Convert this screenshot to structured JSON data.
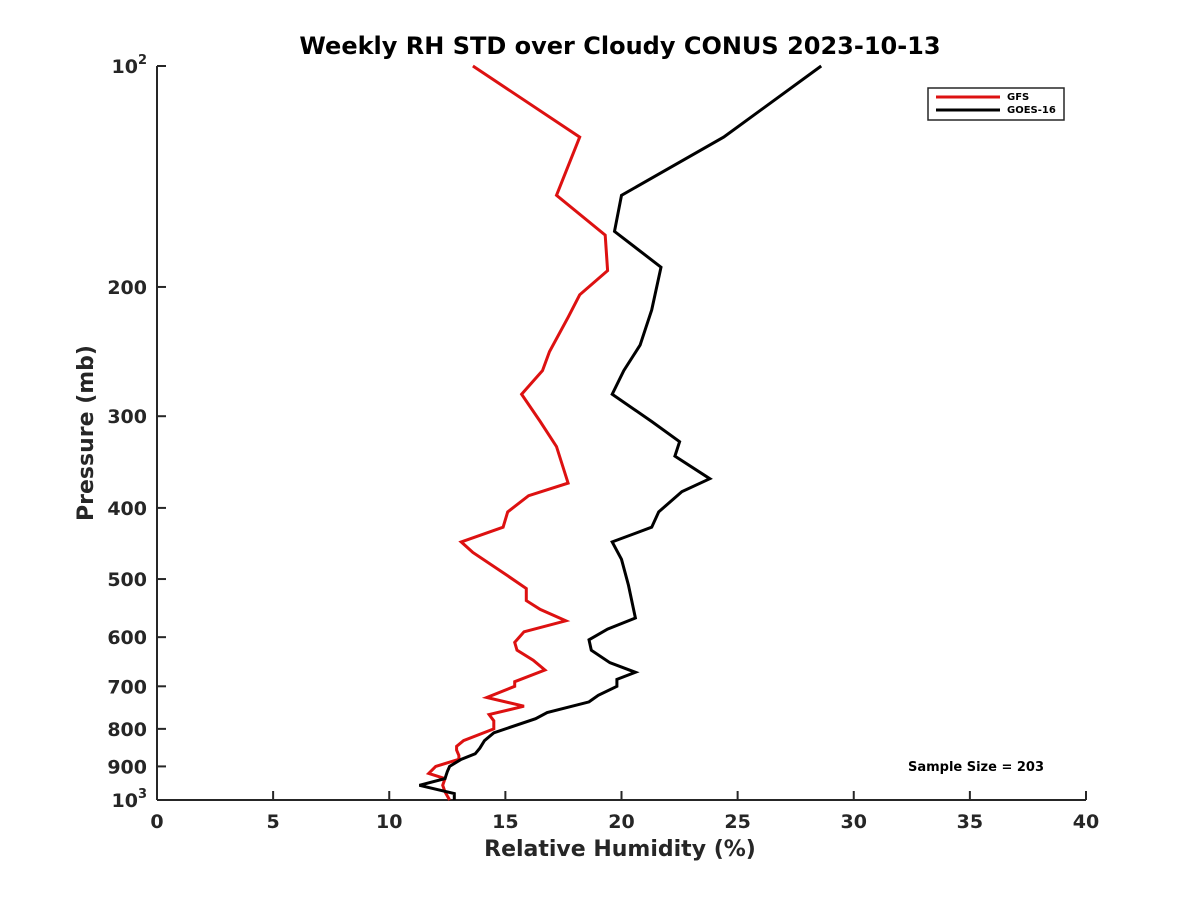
{
  "chart_data": {
    "type": "line",
    "title": "Weekly RH STD over Cloudy CONUS 2023-10-13",
    "xlabel": "Relative Humidity (%)",
    "ylabel": "Pressure (mb)",
    "xlim": [
      0,
      40
    ],
    "ylim": [
      100,
      1000
    ],
    "y_scale": "log",
    "y_reversed": true,
    "grid": false,
    "legend_position": "top-right",
    "x_ticks": [
      {
        "value": 0,
        "label": "0"
      },
      {
        "value": 5,
        "label": "5"
      },
      {
        "value": 10,
        "label": "10"
      },
      {
        "value": 15,
        "label": "15"
      },
      {
        "value": 20,
        "label": "20"
      },
      {
        "value": 25,
        "label": "25"
      },
      {
        "value": 30,
        "label": "30"
      },
      {
        "value": 35,
        "label": "35"
      },
      {
        "value": 40,
        "label": "40"
      }
    ],
    "y_ticks": [
      {
        "value": 100,
        "label": "10",
        "sup": "2"
      },
      {
        "value": 200,
        "label": "200",
        "sup": ""
      },
      {
        "value": 300,
        "label": "300",
        "sup": ""
      },
      {
        "value": 400,
        "label": "400",
        "sup": ""
      },
      {
        "value": 500,
        "label": "500",
        "sup": ""
      },
      {
        "value": 600,
        "label": "600",
        "sup": ""
      },
      {
        "value": 700,
        "label": "700",
        "sup": ""
      },
      {
        "value": 800,
        "label": "800",
        "sup": ""
      },
      {
        "value": 900,
        "label": "900",
        "sup": ""
      },
      {
        "value": 1000,
        "label": "10",
        "sup": "3"
      }
    ],
    "annotation": "Sample Size = 203",
    "series": [
      {
        "name": "GFS",
        "color": "#dd1111",
        "points": [
          [
            13.6,
            100
          ],
          [
            18.2,
            125
          ],
          [
            17.2,
            150
          ],
          [
            19.3,
            170
          ],
          [
            19.4,
            190
          ],
          [
            18.2,
            205
          ],
          [
            17.7,
            220
          ],
          [
            16.9,
            245
          ],
          [
            16.6,
            260
          ],
          [
            15.7,
            280
          ],
          [
            16.5,
            305
          ],
          [
            17.2,
            330
          ],
          [
            17.7,
            370
          ],
          [
            16.0,
            385
          ],
          [
            15.1,
            405
          ],
          [
            14.9,
            425
          ],
          [
            13.1,
            445
          ],
          [
            13.6,
            460
          ],
          [
            15.1,
            495
          ],
          [
            15.9,
            515
          ],
          [
            15.9,
            535
          ],
          [
            16.5,
            550
          ],
          [
            17.6,
            570
          ],
          [
            15.8,
            590
          ],
          [
            15.4,
            610
          ],
          [
            15.5,
            625
          ],
          [
            16.2,
            645
          ],
          [
            16.7,
            665
          ],
          [
            15.4,
            690
          ],
          [
            15.4,
            700
          ],
          [
            14.2,
            725
          ],
          [
            15.8,
            745
          ],
          [
            14.3,
            765
          ],
          [
            14.5,
            780
          ],
          [
            14.5,
            800
          ],
          [
            13.2,
            830
          ],
          [
            12.9,
            845
          ],
          [
            12.9,
            855
          ],
          [
            13.0,
            870
          ],
          [
            13.0,
            880
          ],
          [
            12.0,
            900
          ],
          [
            11.7,
            920
          ],
          [
            12.4,
            935
          ],
          [
            12.3,
            955
          ],
          [
            12.4,
            975
          ],
          [
            12.6,
            1000
          ]
        ]
      },
      {
        "name": "GOES-16",
        "color": "#000000",
        "points": [
          [
            28.6,
            100
          ],
          [
            24.4,
            125
          ],
          [
            20.0,
            150
          ],
          [
            19.7,
            168
          ],
          [
            21.7,
            188
          ],
          [
            21.3,
            215
          ],
          [
            20.8,
            240
          ],
          [
            20.1,
            260
          ],
          [
            19.6,
            280
          ],
          [
            21.3,
            305
          ],
          [
            22.5,
            325
          ],
          [
            22.3,
            340
          ],
          [
            23.8,
            365
          ],
          [
            22.6,
            380
          ],
          [
            21.6,
            405
          ],
          [
            21.3,
            425
          ],
          [
            19.6,
            445
          ],
          [
            20.0,
            470
          ],
          [
            20.3,
            510
          ],
          [
            20.6,
            565
          ],
          [
            19.4,
            585
          ],
          [
            18.6,
            605
          ],
          [
            18.7,
            625
          ],
          [
            19.5,
            650
          ],
          [
            20.6,
            670
          ],
          [
            19.8,
            685
          ],
          [
            19.8,
            700
          ],
          [
            19.0,
            720
          ],
          [
            18.6,
            735
          ],
          [
            16.8,
            760
          ],
          [
            16.3,
            775
          ],
          [
            14.5,
            810
          ],
          [
            14.1,
            830
          ],
          [
            13.9,
            850
          ],
          [
            13.7,
            865
          ],
          [
            13.1,
            880
          ],
          [
            12.6,
            900
          ],
          [
            12.5,
            915
          ],
          [
            12.4,
            935
          ],
          [
            11.3,
            955
          ],
          [
            12.8,
            980
          ],
          [
            12.8,
            1000
          ]
        ]
      }
    ]
  }
}
